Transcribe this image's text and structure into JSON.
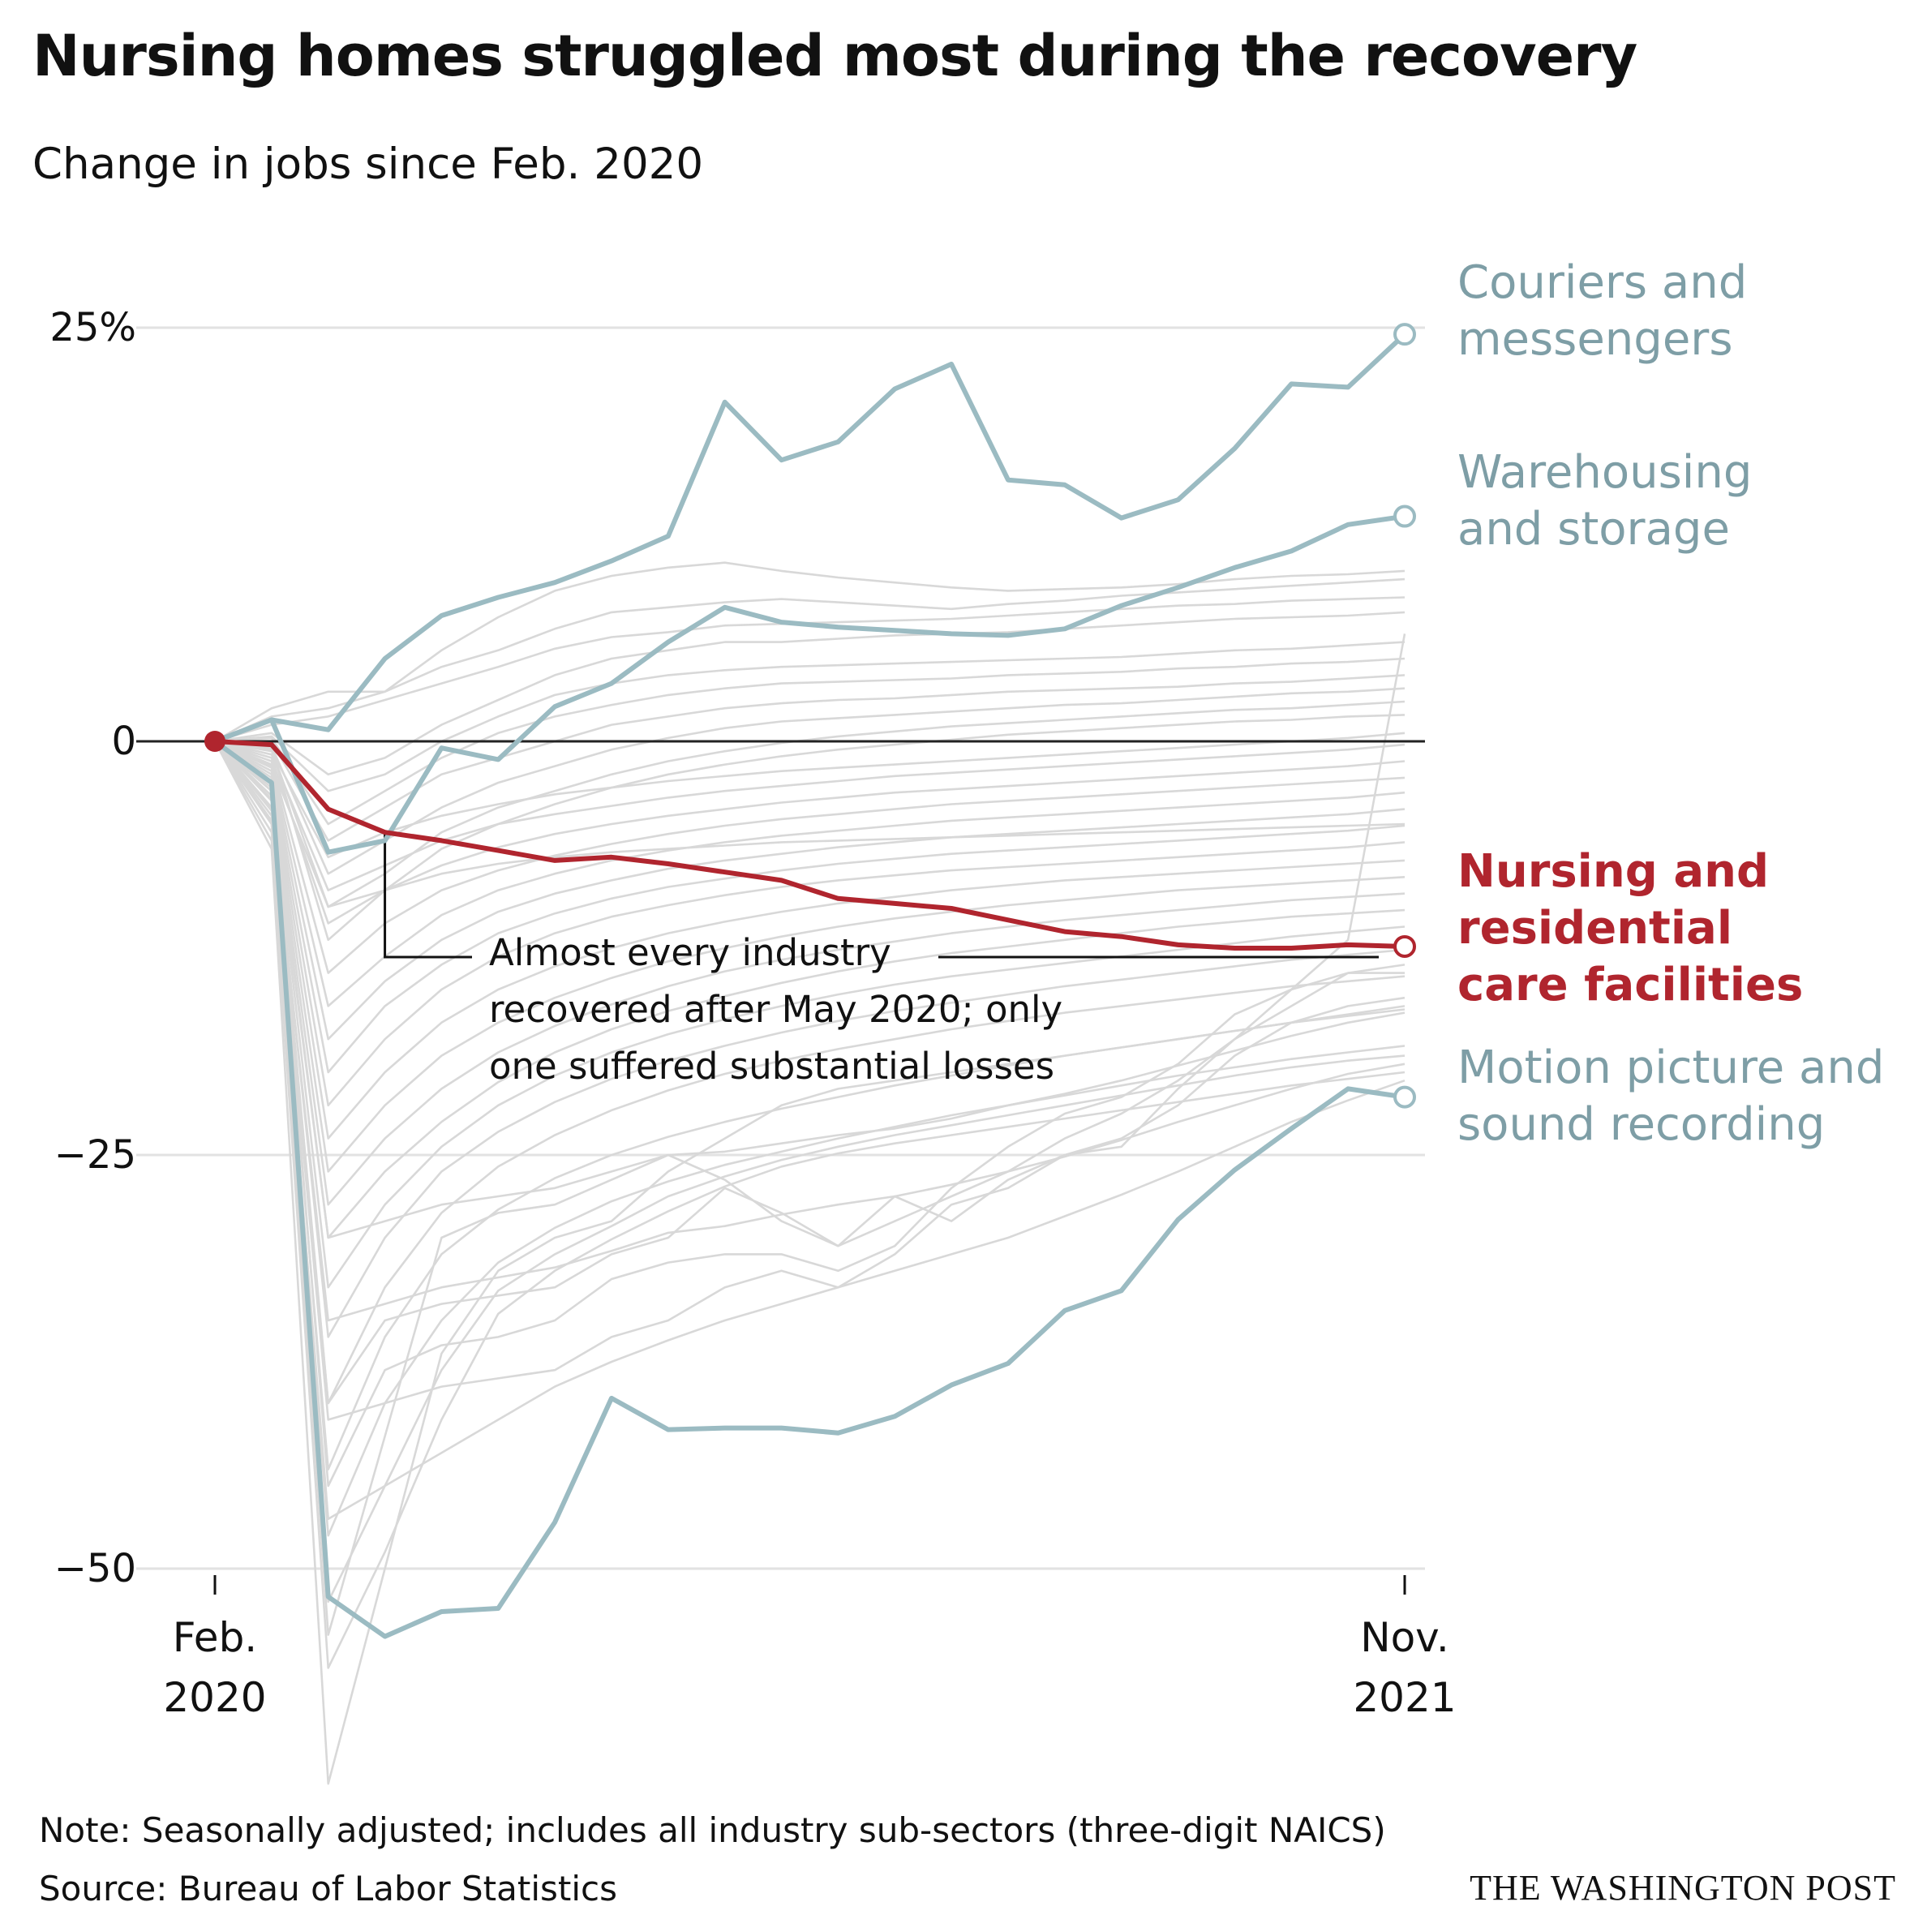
{
  "title": "Nursing homes struggled most during the recovery",
  "subtitle": "Change in jobs since Feb. 2020",
  "note": "Note: Seasonally adjusted; includes all industry sub-sectors (three-digit NAICS)",
  "source": "Source: Bureau of Labor Statistics",
  "credit": "THE WASHINGTON POST",
  "annotation": [
    "Almost every industry",
    "recovered after May 2020; only",
    "one suffered substantial losses"
  ],
  "colors": {
    "highlight": "#b0252e",
    "teal": "#9bbbc2",
    "teal_label": "#7e9ea6",
    "background_lines": "#d8d8d8",
    "gridline": "#e2e2e2",
    "zero_line": "#222222"
  },
  "chart_data": {
    "type": "line",
    "title": "Nursing homes struggled most during the recovery",
    "subtitle": "Change in jobs since Feb. 2020",
    "xlabel": "",
    "ylabel": "",
    "x_tick_labels": [
      {
        "x": "2020-02",
        "lines": [
          "Feb.",
          "2020"
        ]
      },
      {
        "x": "2021-11",
        "lines": [
          "Nov.",
          "2021"
        ]
      }
    ],
    "y_ticks": [
      {
        "value": 25,
        "label": "25%"
      },
      {
        "value": 0,
        "label": "0"
      },
      {
        "value": -25,
        "label": "−25"
      },
      {
        "value": -50,
        "label": "−50"
      }
    ],
    "ylim": [
      -64,
      28
    ],
    "grid": true,
    "x": [
      "2020-02",
      "2020-03",
      "2020-04",
      "2020-05",
      "2020-06",
      "2020-07",
      "2020-08",
      "2020-09",
      "2020-10",
      "2020-11",
      "2020-12",
      "2021-01",
      "2021-02",
      "2021-03",
      "2021-04",
      "2021-05",
      "2021-06",
      "2021-07",
      "2021-08",
      "2021-09",
      "2021-10",
      "2021-11"
    ],
    "series": [
      {
        "name": "Couriers and messengers",
        "label_lines": [
          "Couriers and",
          "messengers"
        ],
        "role": "teal",
        "values": [
          0,
          1.3,
          0.7,
          5,
          7.6,
          8.7,
          9.6,
          10.9,
          12.4,
          20.5,
          17,
          18.1,
          21.3,
          22.8,
          15.8,
          15.5,
          13.5,
          14.6,
          17.7,
          21.6,
          21.4,
          24.6
        ]
      },
      {
        "name": "Warehousing and storage",
        "label_lines": [
          "Warehousing",
          "and storage"
        ],
        "role": "teal",
        "values": [
          0,
          1.3,
          -6.7,
          -6,
          -0.4,
          -1.1,
          2.1,
          3.5,
          6,
          8.1,
          7.2,
          6.9,
          6.7,
          6.5,
          6.4,
          6.8,
          8.2,
          9.3,
          10.5,
          11.5,
          13.1,
          13.6
        ]
      },
      {
        "name": "Nursing and residential care facilities",
        "label_lines": [
          "Nursing and",
          "residential",
          "care facilities"
        ],
        "role": "highlight",
        "values": [
          0,
          -0.2,
          -4.1,
          -5.5,
          -6,
          -6.6,
          -7.2,
          -7,
          -7.4,
          -7.9,
          -8.4,
          -9.5,
          -9.8,
          -10.1,
          -10.8,
          -11.5,
          -11.8,
          -12.3,
          -12.5,
          -12.5,
          -12.3,
          -12.4
        ]
      },
      {
        "name": "Motion picture and sound recording",
        "label_lines": [
          "Motion picture and",
          "sound recording"
        ],
        "role": "teal",
        "values": [
          0,
          -2.5,
          -51.7,
          -54.1,
          -52.6,
          -52.4,
          -47.2,
          -39.7,
          -41.6,
          -41.5,
          -41.5,
          -41.8,
          -40.8,
          -38.9,
          -37.6,
          -34.4,
          -33.2,
          -28.9,
          -25.9,
          -23.4,
          -21,
          -21.5
        ]
      }
    ],
    "background_series": [
      [
        0,
        2,
        3,
        3,
        5.5,
        7.5,
        9.1,
        10,
        10.5,
        10.8,
        10.3,
        9.9,
        9.6,
        9.3,
        9.1,
        9.2,
        9.3,
        9.5,
        9.8,
        10,
        10.1,
        10.3
      ],
      [
        0,
        1.5,
        2,
        3,
        4.5,
        5.5,
        6.8,
        7.8,
        8.1,
        8.4,
        8.6,
        8.4,
        8.2,
        8,
        8.3,
        8.5,
        8.8,
        9,
        9.2,
        9.4,
        9.6,
        9.8
      ],
      [
        0,
        1,
        1.5,
        2.5,
        3.5,
        4.5,
        5.6,
        6.3,
        6.6,
        7,
        7.1,
        7.2,
        7.3,
        7.4,
        7.6,
        7.8,
        8,
        8.2,
        8.3,
        8.5,
        8.6,
        8.7
      ],
      [
        0,
        0.5,
        -2,
        -1,
        1,
        2.5,
        4,
        5,
        5.5,
        6,
        6,
        6.2,
        6.4,
        6.5,
        6.6,
        6.8,
        7,
        7.2,
        7.4,
        7.5,
        7.6,
        7.8
      ],
      [
        0,
        0.3,
        -3,
        -2,
        0,
        1.5,
        2.8,
        3.5,
        4,
        4.3,
        4.5,
        4.6,
        4.7,
        4.8,
        4.9,
        5,
        5.1,
        5.3,
        5.5,
        5.6,
        5.8,
        6
      ],
      [
        0,
        0.2,
        -5,
        -3,
        -1,
        0.5,
        1.5,
        2.2,
        2.8,
        3.2,
        3.5,
        3.6,
        3.7,
        3.8,
        4,
        4.1,
        4.2,
        4.4,
        4.5,
        4.7,
        4.8,
        5
      ],
      [
        0,
        0,
        -6,
        -4,
        -2,
        -1,
        0,
        1,
        1.5,
        2,
        2.3,
        2.5,
        2.6,
        2.8,
        3,
        3.1,
        3.2,
        3.3,
        3.5,
        3.6,
        3.8,
        4
      ],
      [
        0,
        -0.3,
        -8,
        -6,
        -4,
        -2.5,
        -1.5,
        -0.5,
        0.2,
        0.8,
        1.2,
        1.4,
        1.6,
        1.8,
        2,
        2.2,
        2.3,
        2.5,
        2.7,
        2.9,
        3,
        3.2
      ],
      [
        0,
        -0.5,
        -10,
        -8,
        -5.5,
        -4,
        -3,
        -2,
        -1.2,
        -0.6,
        -0.1,
        0.3,
        0.6,
        0.9,
        1.1,
        1.3,
        1.5,
        1.7,
        1.9,
        2,
        2.2,
        2.4
      ],
      [
        0,
        -0.4,
        -12,
        -9,
        -6.5,
        -5,
        -3.8,
        -2.8,
        -2,
        -1.4,
        -0.9,
        -0.5,
        -0.2,
        0.1,
        0.4,
        0.6,
        0.8,
        1,
        1.2,
        1.3,
        1.5,
        1.6
      ],
      [
        0,
        -0.6,
        -7,
        -5.5,
        -4.5,
        -3.8,
        -3.2,
        -2.8,
        -2.4,
        -2.1,
        -1.8,
        -1.6,
        -1.4,
        -1.2,
        -1,
        -0.8,
        -0.6,
        -0.4,
        -0.2,
        0,
        0.2,
        0.5
      ],
      [
        0,
        -0.8,
        -9,
        -7.5,
        -6,
        -5,
        -4.4,
        -3.9,
        -3.4,
        -3,
        -2.7,
        -2.4,
        -2.1,
        -1.9,
        -1.7,
        -1.5,
        -1.3,
        -1.1,
        -0.9,
        -0.7,
        -0.5,
        -0.2
      ],
      [
        0,
        -1,
        -11,
        -9,
        -7.5,
        -6.4,
        -5.6,
        -5,
        -4.5,
        -4.1,
        -3.7,
        -3.4,
        -3.1,
        -2.9,
        -2.7,
        -2.5,
        -2.3,
        -2.1,
        -1.9,
        -1.7,
        -1.5,
        -1.2
      ],
      [
        0,
        -1.2,
        -14,
        -11,
        -9,
        -7.8,
        -6.9,
        -6.2,
        -5.6,
        -5.1,
        -4.7,
        -4.4,
        -4.1,
        -3.8,
        -3.6,
        -3.4,
        -3.2,
        -3,
        -2.8,
        -2.6,
        -2.4,
        -2.2
      ],
      [
        0,
        -1.4,
        -16,
        -13,
        -10.5,
        -9,
        -8,
        -7.2,
        -6.6,
        -6.1,
        -5.7,
        -5.4,
        -5.1,
        -4.8,
        -4.6,
        -4.4,
        -4.2,
        -4,
        -3.8,
        -3.6,
        -3.4,
        -3.1
      ],
      [
        0,
        -1.6,
        -18,
        -14.5,
        -12,
        -10.3,
        -9.2,
        -8.4,
        -7.7,
        -7.2,
        -6.8,
        -6.4,
        -6.1,
        -5.8,
        -5.6,
        -5.4,
        -5.2,
        -5,
        -4.8,
        -4.6,
        -4.4,
        -4.1
      ],
      [
        0,
        -1.8,
        -20,
        -16,
        -13.5,
        -11.6,
        -10.4,
        -9.5,
        -8.8,
        -8.3,
        -7.8,
        -7.4,
        -7.1,
        -6.8,
        -6.6,
        -6.4,
        -6.2,
        -6,
        -5.8,
        -5.6,
        -5.4,
        -5.1
      ],
      [
        0,
        -2,
        -22,
        -18,
        -15,
        -13,
        -11.6,
        -10.6,
        -9.9,
        -9.3,
        -8.8,
        -8.4,
        -8.1,
        -7.8,
        -7.6,
        -7.4,
        -7.2,
        -7,
        -6.8,
        -6.6,
        -6.4,
        -6.1
      ],
      [
        0,
        -1.5,
        -10,
        -9,
        -8,
        -7.4,
        -7,
        -6.7,
        -6.5,
        -6.3,
        -6.1,
        -6,
        -5.9,
        -5.8,
        -5.7,
        -5.6,
        -5.5,
        -5.4,
        -5.3,
        -5.2,
        -5.1,
        -5
      ],
      [
        0,
        -2.2,
        -24,
        -20,
        -17,
        -15,
        -13.6,
        -12.5,
        -11.6,
        -10.9,
        -10.3,
        -9.8,
        -9.4,
        -9,
        -8.7,
        -8.4,
        -8.2,
        -8,
        -7.8,
        -7.6,
        -7.4,
        -7.2
      ],
      [
        0,
        -2.5,
        -26,
        -22,
        -19,
        -17,
        -15.5,
        -14.3,
        -13.3,
        -12.5,
        -11.8,
        -11.2,
        -10.7,
        -10.3,
        -9.9,
        -9.6,
        -9.3,
        -9,
        -8.8,
        -8.6,
        -8.4,
        -8.2
      ],
      [
        0,
        -2.8,
        -28,
        -24,
        -21,
        -18.8,
        -17.2,
        -15.9,
        -14.8,
        -13.9,
        -13.2,
        -12.6,
        -12.1,
        -11.6,
        -11.2,
        -10.8,
        -10.5,
        -10.2,
        -9.9,
        -9.6,
        -9.4,
        -9.2
      ],
      [
        0,
        -3,
        -30,
        -26,
        -23,
        -20.6,
        -18.8,
        -17.4,
        -16.3,
        -15.4,
        -14.6,
        -13.9,
        -13.3,
        -12.8,
        -12.4,
        -12,
        -11.6,
        -11.2,
        -10.9,
        -10.6,
        -10.4,
        -10.2
      ],
      [
        0,
        -3.3,
        -33,
        -28,
        -24.5,
        -22,
        -20.2,
        -18.8,
        -17.7,
        -16.8,
        -16,
        -15.3,
        -14.7,
        -14.2,
        -13.8,
        -13.4,
        -13,
        -12.6,
        -12.2,
        -11.8,
        -11.5,
        -11.2
      ],
      [
        0,
        -3.6,
        -36,
        -30,
        -26,
        -23.6,
        -21.8,
        -20.4,
        -19.3,
        -18.4,
        -17.6,
        -16.9,
        -16.3,
        -15.8,
        -15.3,
        -14.8,
        -14.4,
        -14,
        -13.6,
        -13.2,
        -12.9,
        -12.6
      ],
      [
        0,
        -4,
        -40,
        -33,
        -28.5,
        -25.7,
        -23.8,
        -22.3,
        -21.1,
        -20.1,
        -19.3,
        -18.6,
        -18,
        -17.4,
        -16.9,
        -16.4,
        -16,
        -15.6,
        -15.2,
        -14.8,
        -14.5,
        -14.2
      ],
      [
        0,
        -4.5,
        -44,
        -36,
        -31,
        -28.3,
        -26.4,
        -25,
        -23.9,
        -23,
        -22.2,
        -21.5,
        -20.8,
        -20.2,
        -19.6,
        -19,
        -18.5,
        -18,
        -17.5,
        -17,
        -16.6,
        -16.2
      ],
      [
        0,
        -5,
        -48,
        -40,
        -35,
        -31.5,
        -29.4,
        -27.8,
        -26.6,
        -25.6,
        -24.8,
        -24,
        -23.3,
        -22.6,
        -22,
        -21.4,
        -20.8,
        -20.2,
        -19.7,
        -19.2,
        -18.8,
        -18.4
      ],
      [
        0,
        -5.5,
        -52,
        -45,
        -38,
        -33.2,
        -31,
        -29.3,
        -27.5,
        -26.3,
        -25.3,
        -24.5,
        -23.8,
        -23.2,
        -22.6,
        -22,
        -21.4,
        -20.8,
        -20.2,
        -19.7,
        -19.3,
        -19
      ],
      [
        0,
        -6,
        -56,
        -49,
        -41,
        -34.6,
        -32,
        -30.1,
        -28.4,
        -26.9,
        -25.7,
        -24.9,
        -24.3,
        -23.8,
        -23.3,
        -22.8,
        -22.3,
        -21.8,
        -21.3,
        -20.8,
        -20.4,
        -20
      ],
      [
        0,
        -6.5,
        -63,
        -50,
        -37,
        -32,
        -30,
        -29,
        -26,
        -24,
        -22,
        -21,
        -20.5,
        -20,
        -19.5,
        -19,
        -18.5,
        -18,
        -17.5,
        -17,
        -16.5,
        -16
      ],
      [
        0,
        -5,
        -54,
        -42,
        -30,
        -28.5,
        -28,
        -26.5,
        -25,
        -26.5,
        -29,
        -30.5,
        -27.5,
        -29,
        -26.5,
        -25,
        -24.5,
        -21,
        -18,
        -15,
        -12,
        6.5
      ],
      [
        0,
        -3,
        -40,
        -35,
        -34,
        -33.5,
        -33,
        -31,
        -30,
        -27,
        -28.5,
        -30.5,
        -29,
        -27.5,
        -26,
        -24,
        -22.5,
        -20.5,
        -18,
        -16,
        -14,
        -14
      ],
      [
        0,
        -2.5,
        -45,
        -38,
        -36.5,
        -36,
        -35,
        -32.5,
        -31.5,
        -31,
        -31,
        -32,
        -30.5,
        -27,
        -24.5,
        -22.5,
        -21.5,
        -19.5,
        -16.5,
        -15,
        -14,
        -13.5
      ],
      [
        0,
        -4,
        -41,
        -40,
        -39,
        -38.5,
        -38,
        -36,
        -35,
        -33,
        -32,
        -33,
        -31,
        -28,
        -27,
        -25,
        -24,
        -22,
        -19,
        -17,
        -16,
        -15.5
      ],
      [
        0,
        -3.5,
        -30,
        -29,
        -28,
        -27.5,
        -27,
        -26,
        -25,
        -24.8,
        -24.3,
        -23.8,
        -23.4,
        -22.8,
        -22,
        -21.3,
        -20.5,
        -19.6,
        -18.7,
        -17.8,
        -17,
        -16.4
      ],
      [
        0,
        -4.2,
        -35,
        -34,
        -33,
        -32.4,
        -31.8,
        -30.8,
        -29.7,
        -29.3,
        -28.6,
        -28,
        -27.5,
        -26.8,
        -26,
        -25.1,
        -24.1,
        -23,
        -22,
        -21,
        -20.1,
        -19.5
      ],
      [
        0,
        -4.8,
        -47,
        -45,
        -43,
        -41,
        -39,
        -37.5,
        -36.2,
        -35,
        -34,
        -33,
        -32,
        -31,
        -30,
        -28.7,
        -27.4,
        -26,
        -24.5,
        -23,
        -21.7,
        -20.5
      ]
    ]
  }
}
